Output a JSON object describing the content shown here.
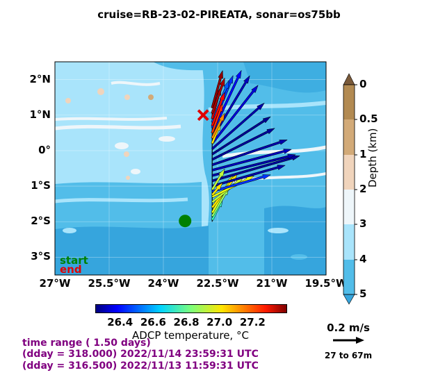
{
  "title": "cruise=RB-23-02-PIREATA,   sonar=os75bb",
  "map": {
    "lat_ticks": [
      "2°N",
      "1°N",
      "0°",
      "1°S",
      "2°S",
      "3°S"
    ],
    "lat_values": [
      2,
      1,
      0,
      -1,
      -2,
      -3
    ],
    "lon_ticks": [
      "27°W",
      "25.5°W",
      "24°W",
      "22.5°W",
      "21°W",
      "19.5°W"
    ],
    "lon_values": [
      -27,
      -25.5,
      -24,
      -22.5,
      -21,
      -19.5
    ],
    "lon_range": [
      -27,
      -19.5
    ],
    "lat_range": [
      -3.5,
      2.5
    ],
    "start_label": "start",
    "end_label": "end",
    "start_color": "#008000",
    "end_color": "#e00000"
  },
  "depth_colorbar": {
    "label": "Depth (km)",
    "ticks": [
      "0",
      "0.5",
      "1",
      "2",
      "3",
      "4",
      "5"
    ],
    "colors": [
      "#7a5a3a",
      "#b28a52",
      "#d2aa78",
      "#f0d4bc",
      "#eef6fa",
      "#a9e4fb",
      "#52bde9",
      "#36a5dd"
    ]
  },
  "temp_colorbar": {
    "label": "ADCP temperature, °C",
    "ticks": [
      "26.4",
      "26.6",
      "26.8",
      "27.0",
      "27.2"
    ],
    "range": [
      26.25,
      27.4
    ]
  },
  "info": {
    "line1": "time range ( 1.50 days)",
    "line2": "(dday = 318.000) 2022/11/14 23:59:31 UTC",
    "line3": "(dday = 316.500) 2022/11/13 11:59:31 UTC"
  },
  "scale": {
    "speed": "0.2 m/s",
    "depth_range": "27 to 67m"
  },
  "chart_data": {
    "type": "scatter",
    "title": "cruise=RB-23-02-PIREATA,   sonar=os75bb",
    "xlabel": "",
    "ylabel": "",
    "xlim": [
      -27,
      -19.5
    ],
    "ylim": [
      -3.5,
      2.5
    ],
    "colorbar_label": "ADCP temperature, °C",
    "depth_label": "Depth (km)",
    "track_start": {
      "lon": -23.4,
      "lat": -1.98
    },
    "track_end": {
      "lon": -22.9,
      "lat": 1.0
    },
    "vectors": [
      {
        "lat": -1.95,
        "u": 0.05,
        "v": 0.1,
        "temp": 26.75
      },
      {
        "lat": -1.85,
        "u": 0.08,
        "v": 0.14,
        "temp": 26.85
      },
      {
        "lat": -1.75,
        "u": 0.1,
        "v": 0.18,
        "temp": 26.95
      },
      {
        "lat": -1.6,
        "u": 0.12,
        "v": 0.16,
        "temp": 27.0
      },
      {
        "lat": -1.45,
        "u": 0.15,
        "v": 0.12,
        "temp": 26.9
      },
      {
        "lat": -1.3,
        "u": 0.2,
        "v": 0.1,
        "temp": 26.95
      },
      {
        "lat": -1.15,
        "u": 0.28,
        "v": 0.08,
        "temp": 26.45
      },
      {
        "lat": -1.0,
        "u": 0.35,
        "v": 0.1,
        "temp": 26.3
      },
      {
        "lat": -0.85,
        "u": 0.42,
        "v": 0.12,
        "temp": 26.28
      },
      {
        "lat": -0.7,
        "u": 0.4,
        "v": 0.1,
        "temp": 26.3
      },
      {
        "lat": -0.55,
        "u": 0.38,
        "v": 0.1,
        "temp": 26.32
      },
      {
        "lat": -0.4,
        "u": 0.36,
        "v": 0.12,
        "temp": 26.3
      },
      {
        "lat": -0.25,
        "u": 0.3,
        "v": 0.15,
        "temp": 26.28
      },
      {
        "lat": -0.1,
        "u": 0.28,
        "v": 0.18,
        "temp": 26.27
      },
      {
        "lat": 0.05,
        "u": 0.25,
        "v": 0.22,
        "temp": 26.3
      },
      {
        "lat": 0.2,
        "u": 0.22,
        "v": 0.28,
        "temp": 26.35
      },
      {
        "lat": 0.35,
        "u": 0.18,
        "v": 0.3,
        "temp": 26.32
      },
      {
        "lat": 0.5,
        "u": 0.14,
        "v": 0.3,
        "temp": 26.4
      },
      {
        "lat": 0.65,
        "u": 0.1,
        "v": 0.25,
        "temp": 26.45
      },
      {
        "lat": 0.8,
        "u": 0.08,
        "v": 0.2,
        "temp": 26.5
      },
      {
        "lat": 0.2,
        "u": 0.04,
        "v": 0.1,
        "temp": 27.0
      },
      {
        "lat": 0.35,
        "u": 0.06,
        "v": 0.12,
        "temp": 27.1
      },
      {
        "lat": 0.5,
        "u": 0.05,
        "v": 0.14,
        "temp": 27.2
      },
      {
        "lat": 0.7,
        "u": 0.06,
        "v": 0.16,
        "temp": 27.25
      },
      {
        "lat": 0.9,
        "u": 0.04,
        "v": 0.15,
        "temp": 27.3
      },
      {
        "lat": 1.05,
        "u": 0.06,
        "v": 0.17,
        "temp": 27.35
      },
      {
        "lat": 1.2,
        "u": 0.05,
        "v": 0.18,
        "temp": 27.38
      },
      {
        "lat": -1.1,
        "u": 0.06,
        "v": 0.1,
        "temp": 26.9
      },
      {
        "lat": -1.25,
        "u": 0.05,
        "v": 0.06,
        "temp": 27.0
      }
    ]
  }
}
